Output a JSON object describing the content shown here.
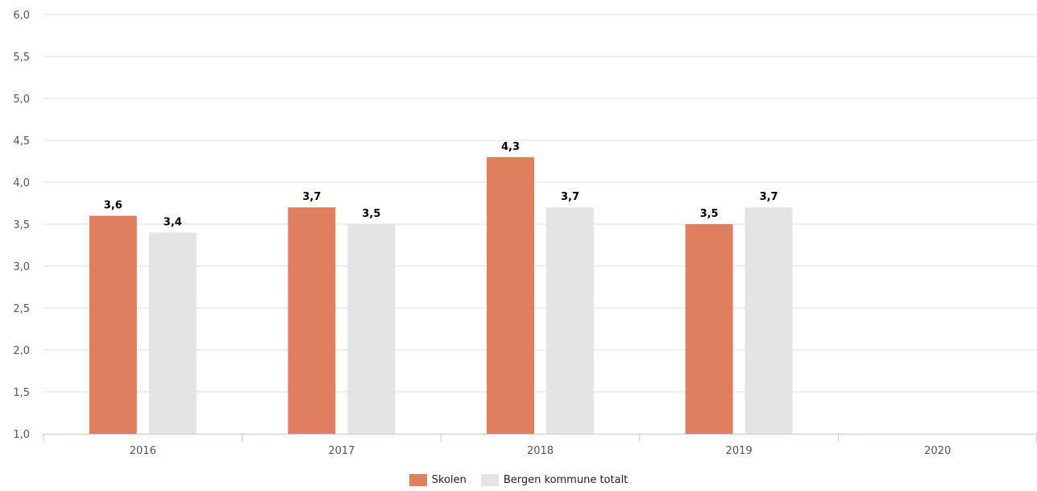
{
  "chart_data": {
    "type": "bar",
    "categories": [
      "2016",
      "2017",
      "2018",
      "2019",
      "2020"
    ],
    "series": [
      {
        "name": "Skolen",
        "values": [
          3.6,
          3.7,
          4.3,
          3.5,
          null
        ],
        "labels": [
          "3,6",
          "3,7",
          "4,3",
          "3,5",
          ""
        ],
        "color": "#e07f5f"
      },
      {
        "name": "Bergen kommune totalt",
        "values": [
          3.4,
          3.5,
          3.7,
          3.7,
          null
        ],
        "labels": [
          "3,4",
          "3,5",
          "3,7",
          "3,7",
          ""
        ],
        "color": "#e4e4e4"
      }
    ],
    "ylim": [
      1.0,
      6.0
    ],
    "yticks": [
      "1,0",
      "1,5",
      "2,0",
      "2,5",
      "3,0",
      "3,5",
      "4,0",
      "4,5",
      "5,0",
      "5,5",
      "6,0"
    ],
    "grid": true,
    "legend_position": "bottom-center",
    "title": "",
    "xlabel": "",
    "ylabel": ""
  },
  "legend": {
    "items": [
      {
        "label": "Skolen",
        "color": "#e07f5f"
      },
      {
        "label": "Bergen kommune totalt",
        "color": "#e4e4e4"
      }
    ]
  }
}
